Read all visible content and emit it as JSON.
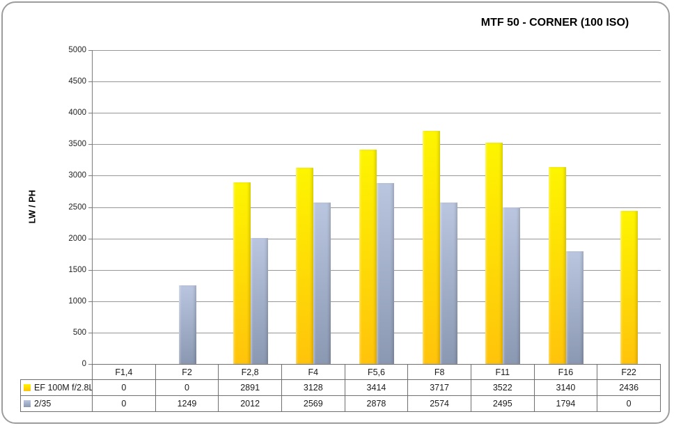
{
  "window": {
    "background": "#FFFFFF",
    "border_color": "#9C9C9C"
  },
  "chart_data": {
    "type": "bar",
    "title": "MTF 50 - CORNER (100 ISO)",
    "ylabel": "LW / PH",
    "xlabel": "",
    "categories": [
      "F1,4",
      "F2",
      "F2,8",
      "F4",
      "F5,6",
      "F8",
      "F11",
      "F16",
      "F22"
    ],
    "series": [
      {
        "name": "EF 100M f/2.8L",
        "color_top": "#FDF500",
        "color_bottom": "#FFC30B",
        "values": [
          0,
          0,
          2891,
          3128,
          3414,
          3717,
          3522,
          3140,
          2436
        ]
      },
      {
        "name": "2/35",
        "color_top": "#BAC6DF",
        "color_bottom": "#8B98B2",
        "values": [
          0,
          1249,
          2012,
          2569,
          2878,
          2574,
          2495,
          1794,
          0
        ]
      }
    ],
    "ylim": [
      0,
      5000
    ],
    "ytick_step": 500,
    "grid": true,
    "gridline_color": "#969696",
    "axis_color": "#7A7A7A",
    "table_border_color": "#6E6E6E",
    "legend_position": "data-table-left"
  }
}
